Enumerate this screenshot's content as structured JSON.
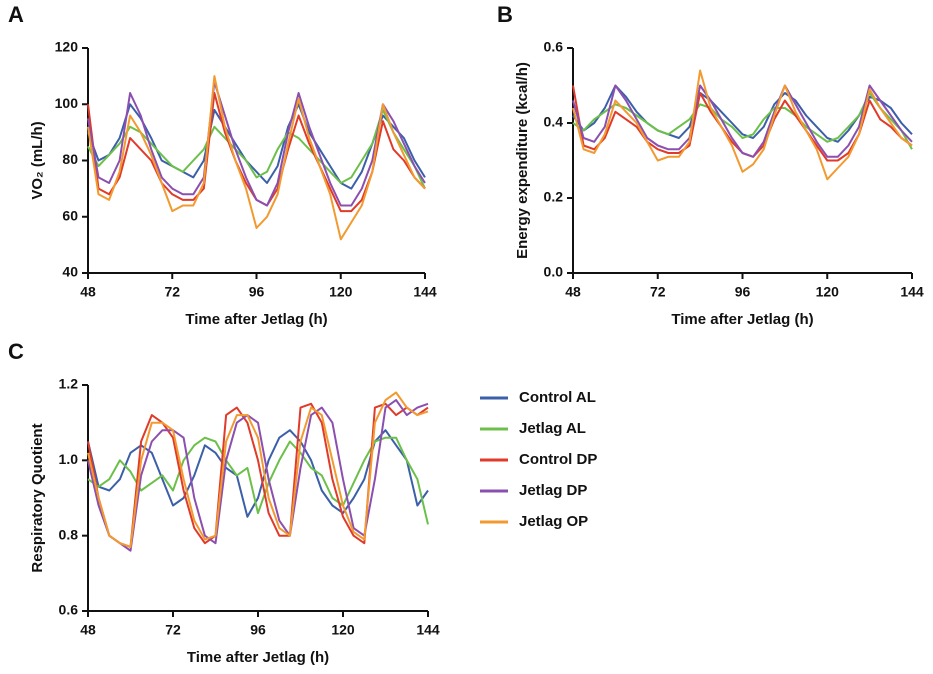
{
  "chart_data": [
    {
      "type": "line",
      "title": "A",
      "x_label": "Time after Jetlag (h)",
      "y_label": "VO₂ (mL/h)",
      "x": [
        48,
        51,
        54,
        57,
        60,
        63,
        66,
        69,
        72,
        75,
        78,
        81,
        84,
        87,
        90,
        93,
        96,
        99,
        102,
        105,
        108,
        111,
        114,
        117,
        120,
        123,
        126,
        129,
        132,
        135,
        138,
        141,
        144
      ],
      "xlim": [
        48,
        144
      ],
      "xticks": [
        48,
        72,
        96,
        120,
        144
      ],
      "ylim": [
        40,
        120
      ],
      "yticks": [
        40,
        60,
        80,
        100,
        120
      ],
      "series": [
        {
          "color": "#3b5fa8",
          "values": [
            90,
            80,
            82,
            88,
            100,
            95,
            88,
            80,
            78,
            76,
            74,
            80,
            98,
            92,
            86,
            80,
            76,
            72,
            78,
            92,
            100,
            90,
            84,
            78,
            72,
            70,
            76,
            86,
            96,
            92,
            88,
            80,
            74
          ]
        },
        {
          "color": "#6cc04a",
          "values": [
            85,
            78,
            82,
            86,
            92,
            90,
            86,
            82,
            78,
            76,
            80,
            84,
            92,
            88,
            84,
            80,
            74,
            76,
            84,
            90,
            88,
            84,
            80,
            76,
            72,
            74,
            80,
            86,
            98,
            90,
            84,
            78,
            70
          ]
        },
        {
          "color": "#e03a2a",
          "values": [
            100,
            70,
            68,
            74,
            88,
            84,
            80,
            72,
            68,
            66,
            66,
            70,
            104,
            90,
            80,
            72,
            66,
            64,
            70,
            84,
            96,
            86,
            78,
            70,
            62,
            62,
            66,
            76,
            94,
            84,
            80,
            74,
            70
          ]
        },
        {
          "color": "#8b4fb0",
          "values": [
            95,
            74,
            72,
            80,
            104,
            96,
            84,
            74,
            70,
            68,
            68,
            74,
            108,
            96,
            84,
            74,
            66,
            64,
            72,
            90,
            104,
            92,
            82,
            72,
            64,
            64,
            70,
            80,
            100,
            94,
            86,
            78,
            72
          ]
        },
        {
          "color": "#f29a30",
          "values": [
            92,
            68,
            66,
            76,
            96,
            90,
            82,
            72,
            62,
            64,
            64,
            72,
            110,
            92,
            80,
            70,
            56,
            60,
            68,
            86,
            102,
            88,
            78,
            68,
            52,
            58,
            64,
            76,
            100,
            90,
            82,
            74,
            70
          ]
        }
      ]
    },
    {
      "type": "line",
      "title": "B",
      "x_label": "Time after Jetlag (h)",
      "y_label": "Energy expenditure (kcal/h)",
      "x": [
        48,
        51,
        54,
        57,
        60,
        63,
        66,
        69,
        72,
        75,
        78,
        81,
        84,
        87,
        90,
        93,
        96,
        99,
        102,
        105,
        108,
        111,
        114,
        117,
        120,
        123,
        126,
        129,
        132,
        135,
        138,
        141,
        144
      ],
      "xlim": [
        48,
        144
      ],
      "xticks": [
        48,
        72,
        96,
        120,
        144
      ],
      "ylim": [
        0,
        0.6
      ],
      "yticks": [
        {
          "value": 0,
          "label": "0.0"
        },
        0.2,
        0.4,
        0.6
      ],
      "series": [
        {
          "color": "#3b5fa8",
          "values": [
            0.42,
            0.38,
            0.4,
            0.44,
            0.5,
            0.47,
            0.43,
            0.4,
            0.38,
            0.37,
            0.36,
            0.39,
            0.48,
            0.46,
            0.43,
            0.4,
            0.37,
            0.36,
            0.39,
            0.45,
            0.48,
            0.46,
            0.42,
            0.39,
            0.36,
            0.35,
            0.38,
            0.42,
            0.47,
            0.46,
            0.44,
            0.4,
            0.37
          ]
        },
        {
          "color": "#6cc04a",
          "values": [
            0.4,
            0.38,
            0.41,
            0.43,
            0.45,
            0.44,
            0.42,
            0.4,
            0.38,
            0.37,
            0.39,
            0.41,
            0.45,
            0.44,
            0.41,
            0.39,
            0.36,
            0.37,
            0.41,
            0.44,
            0.44,
            0.42,
            0.39,
            0.37,
            0.35,
            0.36,
            0.39,
            0.42,
            0.48,
            0.44,
            0.41,
            0.38,
            0.33
          ]
        },
        {
          "color": "#e03a2a",
          "values": [
            0.5,
            0.34,
            0.33,
            0.36,
            0.43,
            0.41,
            0.39,
            0.35,
            0.33,
            0.32,
            0.32,
            0.34,
            0.48,
            0.43,
            0.39,
            0.35,
            0.32,
            0.31,
            0.34,
            0.41,
            0.46,
            0.42,
            0.38,
            0.34,
            0.3,
            0.3,
            0.32,
            0.37,
            0.46,
            0.41,
            0.39,
            0.36,
            0.34
          ]
        },
        {
          "color": "#8b4fb0",
          "values": [
            0.46,
            0.36,
            0.35,
            0.39,
            0.5,
            0.46,
            0.41,
            0.36,
            0.34,
            0.33,
            0.33,
            0.36,
            0.5,
            0.46,
            0.41,
            0.36,
            0.32,
            0.31,
            0.35,
            0.43,
            0.5,
            0.45,
            0.4,
            0.35,
            0.31,
            0.31,
            0.34,
            0.39,
            0.5,
            0.46,
            0.42,
            0.38,
            0.35
          ]
        },
        {
          "color": "#f29a30",
          "values": [
            0.44,
            0.33,
            0.32,
            0.37,
            0.46,
            0.43,
            0.4,
            0.35,
            0.3,
            0.31,
            0.31,
            0.35,
            0.54,
            0.44,
            0.39,
            0.34,
            0.27,
            0.29,
            0.33,
            0.42,
            0.5,
            0.43,
            0.38,
            0.33,
            0.25,
            0.28,
            0.31,
            0.37,
            0.49,
            0.44,
            0.4,
            0.36,
            0.34
          ]
        }
      ]
    },
    {
      "type": "line",
      "title": "C",
      "x_label": "Time after Jetlag (h)",
      "y_label": "Respiratory Quotient",
      "legend": "right",
      "x": [
        48,
        51,
        54,
        57,
        60,
        63,
        66,
        69,
        72,
        75,
        78,
        81,
        84,
        87,
        90,
        93,
        96,
        99,
        102,
        105,
        108,
        111,
        114,
        117,
        120,
        123,
        126,
        129,
        132,
        135,
        138,
        141,
        144
      ],
      "xlim": [
        48,
        144
      ],
      "xticks": [
        48,
        72,
        96,
        120,
        144
      ],
      "ylim": [
        0.6,
        1.2
      ],
      "yticks": [
        0.6,
        0.8,
        {
          "value": 1,
          "label": "1.0"
        },
        1.2
      ],
      "series": [
        {
          "name": "Control AL",
          "color": "#3b5fa8",
          "values": [
            1.05,
            0.93,
            0.92,
            0.95,
            1.02,
            1.04,
            1.02,
            0.95,
            0.88,
            0.9,
            0.96,
            1.04,
            1.02,
            0.98,
            0.96,
            0.85,
            0.9,
            1.0,
            1.06,
            1.08,
            1.05,
            1.0,
            0.92,
            0.88,
            0.86,
            0.9,
            0.95,
            1.05,
            1.08,
            1.04,
            1.0,
            0.88,
            0.92
          ]
        },
        {
          "name": "Jetlag AL",
          "color": "#6cc04a",
          "values": [
            0.95,
            0.93,
            0.95,
            1.0,
            0.97,
            0.92,
            0.94,
            0.96,
            0.92,
            1.0,
            1.04,
            1.06,
            1.05,
            1.0,
            0.96,
            0.98,
            0.86,
            0.94,
            1.0,
            1.05,
            1.02,
            0.98,
            0.96,
            0.9,
            0.88,
            0.94,
            1.0,
            1.05,
            1.06,
            1.06,
            1.0,
            0.95,
            0.83
          ]
        },
        {
          "name": "Control DP",
          "color": "#e03a2a",
          "values": [
            1.05,
            0.9,
            0.8,
            0.78,
            0.77,
            1.05,
            1.12,
            1.1,
            1.06,
            0.92,
            0.82,
            0.78,
            0.8,
            1.12,
            1.14,
            1.1,
            1.0,
            0.86,
            0.8,
            0.8,
            1.14,
            1.15,
            1.1,
            0.95,
            0.85,
            0.8,
            0.78,
            1.14,
            1.15,
            1.12,
            1.14,
            1.12,
            1.14
          ]
        },
        {
          "name": "Jetlag DP",
          "color": "#8b4fb0",
          "values": [
            1.0,
            0.88,
            0.8,
            0.78,
            0.76,
            0.96,
            1.05,
            1.08,
            1.08,
            1.06,
            0.9,
            0.8,
            0.78,
            1.0,
            1.1,
            1.12,
            1.1,
            0.95,
            0.84,
            0.8,
            0.98,
            1.12,
            1.14,
            1.1,
            0.95,
            0.82,
            0.8,
            0.95,
            1.14,
            1.16,
            1.12,
            1.14,
            1.15
          ]
        },
        {
          "name": "Jetlag OP",
          "color": "#f29a30",
          "values": [
            1.02,
            0.9,
            0.8,
            0.78,
            0.77,
            1.0,
            1.1,
            1.1,
            1.08,
            0.95,
            0.84,
            0.79,
            0.8,
            1.05,
            1.12,
            1.12,
            1.06,
            0.9,
            0.82,
            0.8,
            1.05,
            1.14,
            1.12,
            1.0,
            0.88,
            0.81,
            0.79,
            1.1,
            1.16,
            1.18,
            1.14,
            1.12,
            1.13
          ]
        }
      ]
    }
  ]
}
